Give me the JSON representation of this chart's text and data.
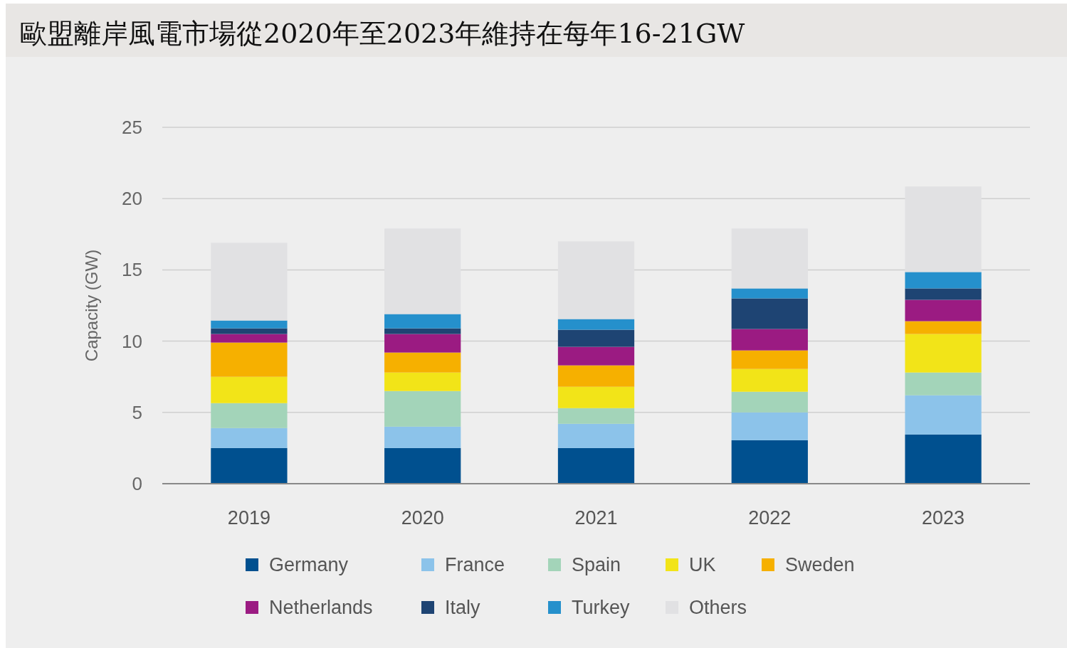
{
  "chart_data": {
    "type": "bar",
    "title": "歐盟離岸風電市場從2020年至2023年維持在每年16-21GW",
    "ylabel": "Capacity (GW)",
    "categories": [
      "2019",
      "2020",
      "2021",
      "2022",
      "2023"
    ],
    "stacked": true,
    "ylim": [
      0,
      25
    ],
    "yticks": [
      0,
      5,
      10,
      15,
      20,
      25
    ],
    "grid": "y",
    "legend": "bottom",
    "series": [
      {
        "name": "Germany",
        "color": "#00508f",
        "values": [
          2.5,
          2.5,
          2.5,
          3.05,
          3.45
        ]
      },
      {
        "name": "France",
        "color": "#8cc3ea",
        "values": [
          1.4,
          1.5,
          1.7,
          1.95,
          2.75
        ]
      },
      {
        "name": "Spain",
        "color": "#a3d4b9",
        "values": [
          1.75,
          2.5,
          1.1,
          1.45,
          1.6
        ]
      },
      {
        "name": "UK",
        "color": "#f2e418",
        "values": [
          1.85,
          1.3,
          1.5,
          1.6,
          2.7
        ]
      },
      {
        "name": "Sweden",
        "color": "#f6b000",
        "values": [
          2.4,
          1.4,
          1.5,
          1.3,
          0.9
        ]
      },
      {
        "name": "Netherlands",
        "color": "#9b1b82",
        "values": [
          0.6,
          1.3,
          1.3,
          1.5,
          1.5
        ]
      },
      {
        "name": "Italy",
        "color": "#1e4473",
        "values": [
          0.4,
          0.4,
          1.2,
          2.15,
          0.8
        ]
      },
      {
        "name": "Turkey",
        "color": "#2590cc",
        "values": [
          0.55,
          1.0,
          0.75,
          0.7,
          1.15
        ]
      },
      {
        "name": "Others",
        "color": "#e1e1e3",
        "values": [
          5.45,
          6.0,
          5.45,
          4.2,
          6.0
        ]
      }
    ]
  }
}
